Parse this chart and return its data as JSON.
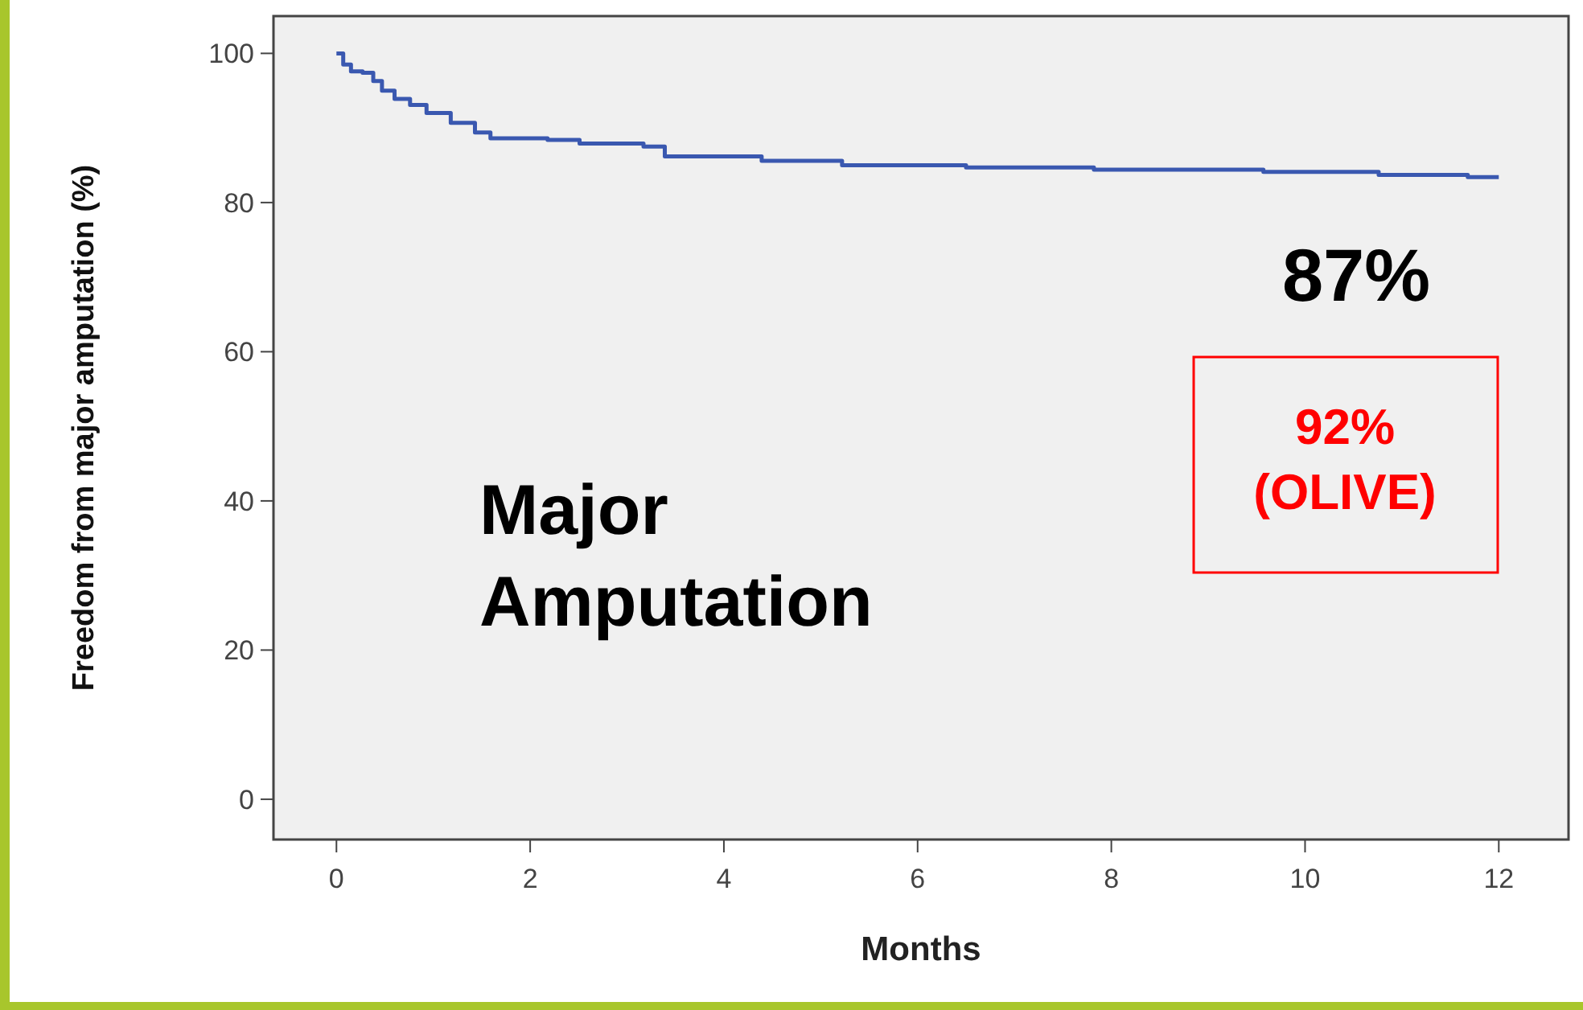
{
  "chart_data": {
    "type": "step",
    "xlabel": "Months",
    "ylabel": "Freedom from major amputation (%)",
    "xlim": [
      -0.65,
      12.72
    ],
    "ylim": [
      -5.4,
      105
    ],
    "xticks": [
      0,
      2,
      4,
      6,
      8,
      10,
      12
    ],
    "yticks": [
      0,
      20,
      40,
      60,
      80,
      100
    ],
    "grid": false,
    "series": [
      {
        "color": "#3a58b0",
        "x": [
          0,
          0.07,
          0.15,
          0.27,
          0.38,
          0.47,
          0.6,
          0.76,
          0.93,
          1.18,
          1.43,
          1.59,
          2.18,
          2.51,
          3.17,
          3.39,
          4.39,
          5.22,
          6.5,
          7.82,
          9.57,
          10.76,
          11.68,
          12
        ],
        "values": [
          100,
          98.5,
          97.6,
          97.4,
          96.3,
          95.0,
          93.9,
          93.1,
          92.0,
          90.7,
          89.4,
          88.6,
          88.4,
          87.9,
          87.5,
          86.2,
          85.6,
          85.0,
          84.7,
          84.4,
          84.1,
          83.7,
          83.4,
          83.4
        ]
      }
    ],
    "annotations": [
      "87%",
      "92% (OLIVE)",
      "Major Amputation"
    ]
  }
}
